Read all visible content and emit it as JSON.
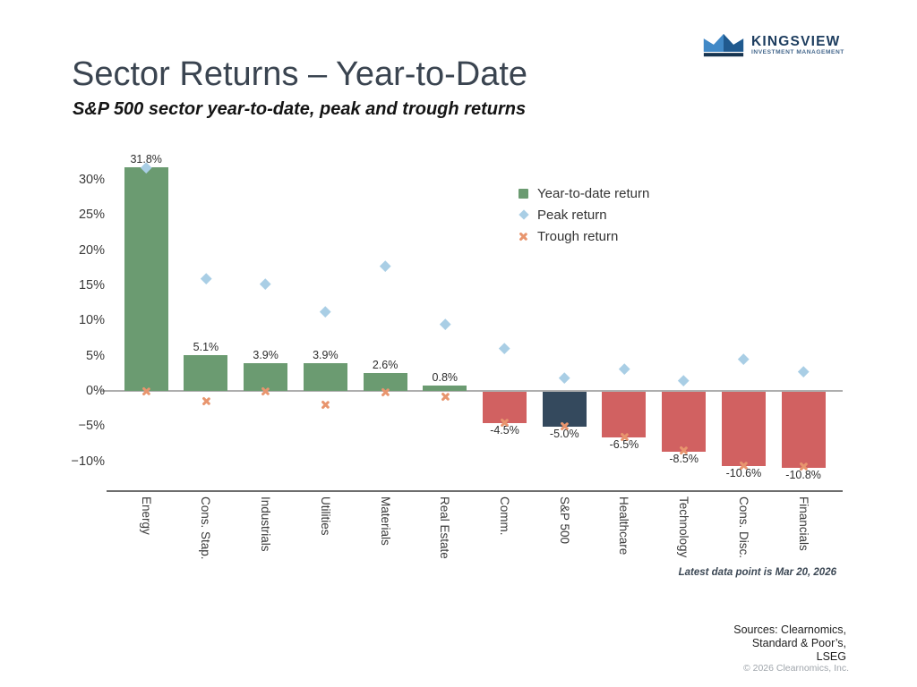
{
  "header": {
    "title": "Sector Returns – Year-to-Date",
    "subtitle": "S&P 500 sector year-to-date, peak and trough returns",
    "logo": {
      "name": "KINGSVIEW",
      "tagline": "INVESTMENT MANAGEMENT"
    }
  },
  "chart_data": {
    "type": "bar",
    "title": "Sector Returns – Year-to-Date",
    "subtitle": "S&P 500 sector year-to-date, peak and trough returns",
    "categories": [
      "Energy",
      "Cons. Stap.",
      "Industrials",
      "Utilities",
      "Materials",
      "Real Estate",
      "Comm.",
      "S&P 500",
      "Healthcare",
      "Technology",
      "Cons. Disc.",
      "Financials"
    ],
    "series": [
      {
        "name": "Year-to-date return",
        "type": "bar",
        "values": [
          31.8,
          5.1,
          3.9,
          3.9,
          2.6,
          0.8,
          -4.5,
          -5.0,
          -6.5,
          -8.5,
          -10.6,
          -10.8
        ],
        "labels": [
          "31.8%",
          "5.1%",
          "3.9%",
          "3.9%",
          "2.6%",
          "0.8%",
          "-4.5%",
          "-5.0%",
          "-6.5%",
          "-8.5%",
          "-10.6%",
          "-10.8%"
        ]
      },
      {
        "name": "Peak return",
        "type": "scatter",
        "marker": "diamond",
        "values": [
          31.8,
          16.0,
          15.2,
          11.3,
          17.8,
          9.5,
          6.1,
          1.9,
          3.2,
          1.5,
          4.6,
          2.8
        ]
      },
      {
        "name": "Trough return",
        "type": "scatter",
        "marker": "x",
        "values": [
          -0.1,
          -1.5,
          -0.1,
          -2.0,
          -0.2,
          -0.8,
          -4.5,
          -5.0,
          -6.5,
          -8.5,
          -10.6,
          -10.8
        ]
      }
    ],
    "highlight_category": "S&P 500",
    "ylim": [
      -13,
      34
    ],
    "yticks": [
      {
        "value": 30,
        "label": "30%"
      },
      {
        "value": 25,
        "label": "25%"
      },
      {
        "value": 20,
        "label": "20%"
      },
      {
        "value": 15,
        "label": "15%"
      },
      {
        "value": 10,
        "label": "10%"
      },
      {
        "value": 5,
        "label": "5%"
      },
      {
        "value": 0,
        "label": "0%"
      },
      {
        "value": -5,
        "label": "−5%"
      },
      {
        "value": -10,
        "label": "−10%"
      }
    ],
    "grid": "zero line only",
    "legend_position": "upper right inside plot",
    "colors": {
      "positive_bar": "#6b9b71",
      "negative_bar": "#d16161",
      "highlight_bar": "#34495d",
      "peak_marker": "#a9cee5",
      "trough_marker": "#e8956e"
    }
  },
  "legend": {
    "items": [
      {
        "label": "Year-to-date return",
        "marker": "square",
        "color": "#6b9b71"
      },
      {
        "label": "Peak return",
        "marker": "diamond",
        "color": "#a9cee5"
      },
      {
        "label": "Trough return",
        "marker": "x",
        "color": "#e8956e"
      }
    ]
  },
  "footnote": "Latest data point is Mar 20, 2026",
  "sources": {
    "lines": [
      "Sources: Clearnomics,",
      "Standard & Poor’s,",
      "LSEG"
    ],
    "copyright": "© 2026 Clearnomics, Inc."
  }
}
